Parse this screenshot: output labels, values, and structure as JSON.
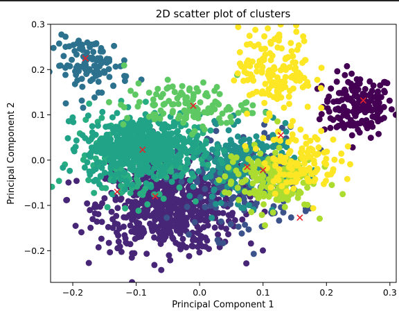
{
  "chart_data": {
    "type": "scatter",
    "title": "2D scatter plot of clusters",
    "xlabel": "Principal Component 1",
    "ylabel": "Principal Component 2",
    "xlim": [
      -0.235,
      0.31
    ],
    "ylim": [
      -0.27,
      0.3
    ],
    "xticks": [
      -0.2,
      -0.1,
      0.0,
      0.1,
      0.2,
      0.3
    ],
    "xtick_labels": [
      "−0.2",
      "−0.1",
      "0.0",
      "0.1",
      "0.2",
      "0.3"
    ],
    "yticks": [
      -0.2,
      -0.1,
      0.0,
      0.1,
      0.2,
      0.3
    ],
    "ytick_labels": [
      "−0.2",
      "−0.1",
      "0.0",
      "0.1",
      "0.2",
      "0.3"
    ],
    "grid": false,
    "colormap": "viridis",
    "clusters": [
      {
        "color": "#440154",
        "center": [
          0.25,
          0.12
        ],
        "spread": [
          0.028,
          0.035
        ],
        "points": 170
      },
      {
        "color": "#482677",
        "center": [
          -0.05,
          -0.1
        ],
        "spread": [
          0.055,
          0.05
        ],
        "points": 650
      },
      {
        "color": "#3b528b",
        "center": [
          0.06,
          -0.05
        ],
        "spread": [
          0.05,
          0.06
        ],
        "points": 160
      },
      {
        "color": "#2c728e",
        "center": [
          -0.17,
          0.21
        ],
        "spread": [
          0.03,
          0.03
        ],
        "points": 110
      },
      {
        "color": "#21918c",
        "center": [
          0.07,
          -0.01
        ],
        "spread": [
          0.04,
          0.04
        ],
        "points": 220
      },
      {
        "color": "#28ae80",
        "center": [
          -0.1,
          0.0
        ],
        "spread": [
          0.05,
          0.05
        ],
        "points": 160
      },
      {
        "color": "#20a386",
        "center": [
          -0.09,
          0.03
        ],
        "spread": [
          0.045,
          0.035
        ],
        "points": 540
      },
      {
        "color": "#5ec962",
        "center": [
          -0.02,
          0.12
        ],
        "spread": [
          0.05,
          0.025
        ],
        "points": 120
      },
      {
        "color": "#addc30",
        "center": [
          0.11,
          -0.04
        ],
        "spread": [
          0.035,
          0.035
        ],
        "points": 170
      },
      {
        "color": "#fde725",
        "center": [
          0.12,
          0.2
        ],
        "spread": [
          0.03,
          0.05
        ],
        "points": 160
      },
      {
        "color": "#fde725",
        "center": [
          0.16,
          0.0
        ],
        "spread": [
          0.03,
          0.035
        ],
        "points": 120
      }
    ],
    "centroids": [
      [
        -0.18,
        0.225
      ],
      [
        -0.01,
        0.12
      ],
      [
        -0.09,
        0.023
      ],
      [
        -0.13,
        -0.07
      ],
      [
        -0.07,
        -0.08
      ],
      [
        0.075,
        -0.015
      ],
      [
        0.1,
        -0.022
      ],
      [
        0.128,
        0.055
      ],
      [
        0.158,
        -0.127
      ],
      [
        0.258,
        0.132
      ]
    ],
    "centroid_marker": "x",
    "centroid_color": "#e8202a"
  }
}
